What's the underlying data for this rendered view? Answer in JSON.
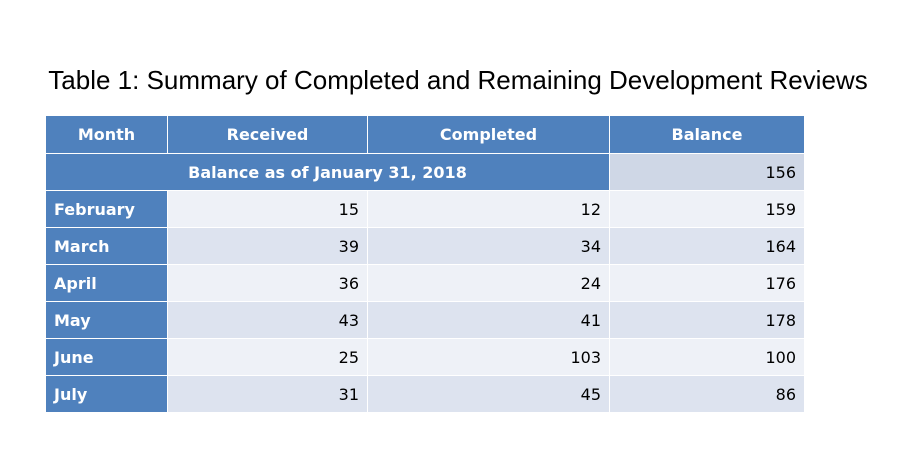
{
  "title": "Table 1: Summary of Completed and Remaining Development Reviews",
  "table": {
    "headers": {
      "month": "Month",
      "received": "Received",
      "completed": "Completed",
      "balance": "Balance"
    },
    "starting_balance": {
      "label": "Balance as of January 31, 2018",
      "value": "156"
    },
    "rows": [
      {
        "month": "February",
        "received": "15",
        "completed": "12",
        "balance": "159"
      },
      {
        "month": "March",
        "received": "39",
        "completed": "34",
        "balance": "164"
      },
      {
        "month": "April",
        "received": "36",
        "completed": "24",
        "balance": "176"
      },
      {
        "month": "May",
        "received": "43",
        "completed": "41",
        "balance": "178"
      },
      {
        "month": "June",
        "received": "25",
        "completed": "103",
        "balance": "100"
      },
      {
        "month": "July",
        "received": "31",
        "completed": "45",
        "balance": "86"
      }
    ]
  },
  "colors": {
    "header_blue": "#4f81bd",
    "row_light": "#eef1f7",
    "row_dark": "#dde3ef",
    "text_white": "#ffffff"
  }
}
